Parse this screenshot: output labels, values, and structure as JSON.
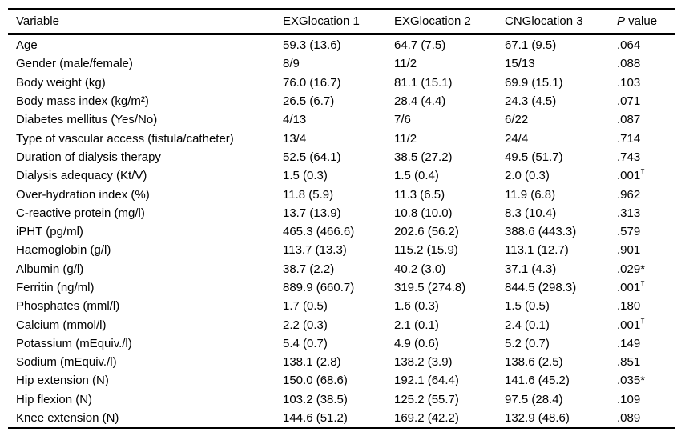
{
  "header": {
    "variable": "Variable",
    "group1": "EXGlocation 1",
    "group2": "EXGlocation 2",
    "group3": "CNGlocation 3",
    "p_italic": "P",
    "p_rest": " value"
  },
  "rows": [
    {
      "variable": "Age",
      "g1": "59.3 (13.6)",
      "g2": "64.7 (7.5)",
      "g3": "67.1 (9.5)",
      "p": ".064",
      "p_sup": ""
    },
    {
      "variable": "Gender (male/female)",
      "g1": "8/9",
      "g2": "11/2",
      "g3": "15/13",
      "p": ".088",
      "p_sup": ""
    },
    {
      "variable": "Body weight (kg)",
      "g1": "76.0 (16.7)",
      "g2": "81.1 (15.1)",
      "g3": "69.9 (15.1)",
      "p": ".103",
      "p_sup": ""
    },
    {
      "variable": "Body mass index (kg/m²)",
      "g1": "26.5 (6.7)",
      "g2": "28.4 (4.4)",
      "g3": "24.3 (4.5)",
      "p": ".071",
      "p_sup": ""
    },
    {
      "variable": "Diabetes mellitus (Yes/No)",
      "g1": "4/13",
      "g2": "7/6",
      "g3": "6/22",
      "p": ".087",
      "p_sup": ""
    },
    {
      "variable": "Type of vascular access (fistula/catheter)",
      "g1": "13/4",
      "g2": "11/2",
      "g3": "24/4",
      "p": ".714",
      "p_sup": ""
    },
    {
      "variable": "Duration of dialysis therapy",
      "g1": "52.5 (64.1)",
      "g2": "38.5 (27.2)",
      "g3": "49.5 (51.7)",
      "p": ".743",
      "p_sup": ""
    },
    {
      "variable": "Dialysis adequacy (Kt/V)",
      "g1": "1.5 (0.3)",
      "g2": "1.5 (0.4)",
      "g3": "2.0 (0.3)",
      "p": ".001",
      "p_sup": "†"
    },
    {
      "variable": "Over-hydration index (%)",
      "g1": "11.8 (5.9)",
      "g2": "11.3 (6.5)",
      "g3": "11.9 (6.8)",
      "p": ".962",
      "p_sup": ""
    },
    {
      "variable": "C-reactive protein (mg/l)",
      "g1": "13.7 (13.9)",
      "g2": "10.8 (10.0)",
      "g3": "8.3 (10.4)",
      "p": ".313",
      "p_sup": ""
    },
    {
      "variable": "iPHT (pg/ml)",
      "g1": "465.3 (466.6)",
      "g2": "202.6 (56.2)",
      "g3": "388.6 (443.3)",
      "p": ".579",
      "p_sup": ""
    },
    {
      "variable": "Haemoglobin (g/l)",
      "g1": "113.7 (13.3)",
      "g2": "115.2 (15.9)",
      "g3": "113.1 (12.7)",
      "p": ".901",
      "p_sup": ""
    },
    {
      "variable": "Albumin (g/l)",
      "g1": "38.7 (2.2)",
      "g2": "40.2 (3.0)",
      "g3": "37.1 (4.3)",
      "p": ".029*",
      "p_sup": ""
    },
    {
      "variable": "Ferritin (ng/ml)",
      "g1": "889.9 (660.7)",
      "g2": "319.5 (274.8)",
      "g3": "844.5 (298.3)",
      "p": ".001",
      "p_sup": "†"
    },
    {
      "variable": "Phosphates (mml/l)",
      "g1": "1.7 (0.5)",
      "g2": "1.6 (0.3)",
      "g3": "1.5 (0.5)",
      "p": ".180",
      "p_sup": ""
    },
    {
      "variable": "Calcium (mmol/l)",
      "g1": "2.2 (0.3)",
      "g2": "2.1 (0.1)",
      "g3": "2.4 (0.1)",
      "p": ".001",
      "p_sup": "†"
    },
    {
      "variable": "Potassium (mEquiv./l)",
      "g1": "5.4 (0.7)",
      "g2": "4.9 (0.6)",
      "g3": "5.2 (0.7)",
      "p": ".149",
      "p_sup": ""
    },
    {
      "variable": "Sodium (mEquiv./l)",
      "g1": "138.1 (2.8)",
      "g2": "138.2 (3.9)",
      "g3": "138.6 (2.5)",
      "p": ".851",
      "p_sup": ""
    },
    {
      "variable": "Hip extension (N)",
      "g1": "150.0 (68.6)",
      "g2": "192.1 (64.4)",
      "g3": "141.6 (45.2)",
      "p": ".035*",
      "p_sup": ""
    },
    {
      "variable": "Hip flexion (N)",
      "g1": "103.2 (38.5)",
      "g2": "125.2 (55.7)",
      "g3": "97.5 (28.4)",
      "p": ".109",
      "p_sup": ""
    },
    {
      "variable": "Knee extension (N)",
      "g1": "144.6 (51.2)",
      "g2": "169.2 (42.2)",
      "g3": "132.9 (48.6)",
      "p": ".089",
      "p_sup": ""
    }
  ],
  "colors": {
    "text": "#000000",
    "background": "#ffffff",
    "border": "#000000"
  }
}
